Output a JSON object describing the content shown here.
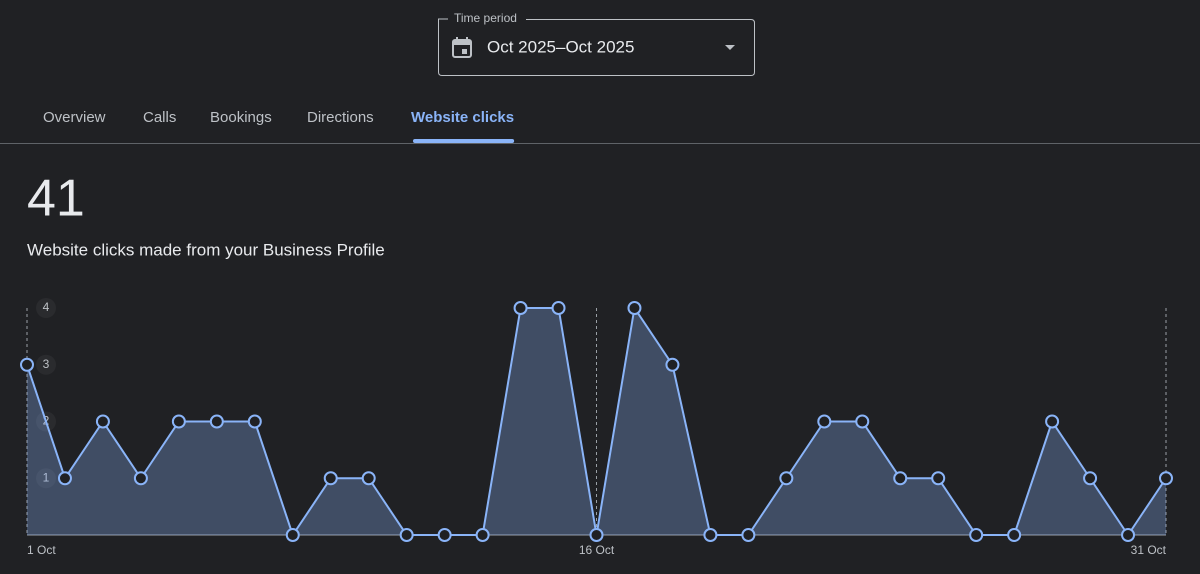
{
  "time_period": {
    "label": "Time period",
    "value": "Oct 2025–Oct 2025"
  },
  "tabs": [
    "Overview",
    "Calls",
    "Bookings",
    "Directions",
    "Website clicks"
  ],
  "active_tab": 4,
  "total": "41",
  "description": "Website clicks made from your Business Profile",
  "chart_data": {
    "type": "line",
    "categories": [
      "1 Oct",
      null,
      null,
      null,
      null,
      null,
      null,
      null,
      null,
      null,
      null,
      null,
      null,
      null,
      null,
      "16 Oct",
      null,
      null,
      null,
      null,
      null,
      null,
      null,
      null,
      null,
      null,
      null,
      null,
      null,
      null,
      "31 Oct"
    ],
    "values": [
      3,
      1,
      2,
      1,
      2,
      2,
      2,
      0,
      1,
      1,
      0,
      0,
      0,
      4,
      4,
      0,
      4,
      3,
      0,
      0,
      1,
      2,
      2,
      1,
      1,
      0,
      0,
      2,
      1,
      0,
      1
    ],
    "color": "#8ab4f8",
    "ylim": [
      0,
      4
    ],
    "yticks": [
      1,
      2,
      3,
      4
    ]
  }
}
